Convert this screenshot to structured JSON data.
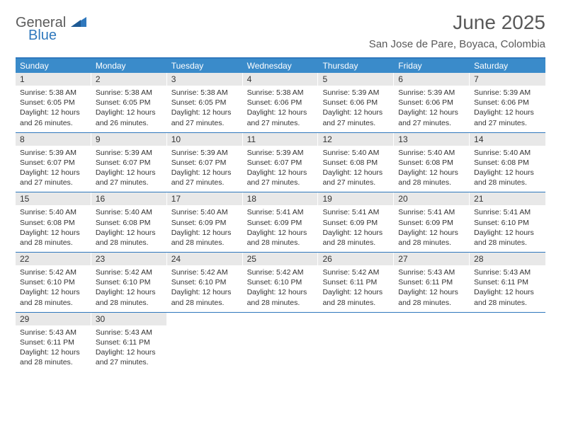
{
  "logo": {
    "line1": "General",
    "line2": "Blue",
    "brand_gray": "#5b5b5b",
    "brand_blue": "#2f78bd"
  },
  "header": {
    "title": "June 2025",
    "location": "San Jose de Pare, Boyaca, Colombia"
  },
  "colors": {
    "header_bar": "#3a8bca",
    "rule": "#2f78bd",
    "daynum_bg": "#e8e8e8",
    "text": "#333333",
    "title_text": "#595959"
  },
  "daysOfWeek": [
    "Sunday",
    "Monday",
    "Tuesday",
    "Wednesday",
    "Thursday",
    "Friday",
    "Saturday"
  ],
  "weeks": [
    [
      {
        "n": "1",
        "sr": "5:38 AM",
        "ss": "6:05 PM",
        "dl": "12 hours and 26 minutes."
      },
      {
        "n": "2",
        "sr": "5:38 AM",
        "ss": "6:05 PM",
        "dl": "12 hours and 26 minutes."
      },
      {
        "n": "3",
        "sr": "5:38 AM",
        "ss": "6:05 PM",
        "dl": "12 hours and 27 minutes."
      },
      {
        "n": "4",
        "sr": "5:38 AM",
        "ss": "6:06 PM",
        "dl": "12 hours and 27 minutes."
      },
      {
        "n": "5",
        "sr": "5:39 AM",
        "ss": "6:06 PM",
        "dl": "12 hours and 27 minutes."
      },
      {
        "n": "6",
        "sr": "5:39 AM",
        "ss": "6:06 PM",
        "dl": "12 hours and 27 minutes."
      },
      {
        "n": "7",
        "sr": "5:39 AM",
        "ss": "6:06 PM",
        "dl": "12 hours and 27 minutes."
      }
    ],
    [
      {
        "n": "8",
        "sr": "5:39 AM",
        "ss": "6:07 PM",
        "dl": "12 hours and 27 minutes."
      },
      {
        "n": "9",
        "sr": "5:39 AM",
        "ss": "6:07 PM",
        "dl": "12 hours and 27 minutes."
      },
      {
        "n": "10",
        "sr": "5:39 AM",
        "ss": "6:07 PM",
        "dl": "12 hours and 27 minutes."
      },
      {
        "n": "11",
        "sr": "5:39 AM",
        "ss": "6:07 PM",
        "dl": "12 hours and 27 minutes."
      },
      {
        "n": "12",
        "sr": "5:40 AM",
        "ss": "6:08 PM",
        "dl": "12 hours and 27 minutes."
      },
      {
        "n": "13",
        "sr": "5:40 AM",
        "ss": "6:08 PM",
        "dl": "12 hours and 28 minutes."
      },
      {
        "n": "14",
        "sr": "5:40 AM",
        "ss": "6:08 PM",
        "dl": "12 hours and 28 minutes."
      }
    ],
    [
      {
        "n": "15",
        "sr": "5:40 AM",
        "ss": "6:08 PM",
        "dl": "12 hours and 28 minutes."
      },
      {
        "n": "16",
        "sr": "5:40 AM",
        "ss": "6:08 PM",
        "dl": "12 hours and 28 minutes."
      },
      {
        "n": "17",
        "sr": "5:40 AM",
        "ss": "6:09 PM",
        "dl": "12 hours and 28 minutes."
      },
      {
        "n": "18",
        "sr": "5:41 AM",
        "ss": "6:09 PM",
        "dl": "12 hours and 28 minutes."
      },
      {
        "n": "19",
        "sr": "5:41 AM",
        "ss": "6:09 PM",
        "dl": "12 hours and 28 minutes."
      },
      {
        "n": "20",
        "sr": "5:41 AM",
        "ss": "6:09 PM",
        "dl": "12 hours and 28 minutes."
      },
      {
        "n": "21",
        "sr": "5:41 AM",
        "ss": "6:10 PM",
        "dl": "12 hours and 28 minutes."
      }
    ],
    [
      {
        "n": "22",
        "sr": "5:42 AM",
        "ss": "6:10 PM",
        "dl": "12 hours and 28 minutes."
      },
      {
        "n": "23",
        "sr": "5:42 AM",
        "ss": "6:10 PM",
        "dl": "12 hours and 28 minutes."
      },
      {
        "n": "24",
        "sr": "5:42 AM",
        "ss": "6:10 PM",
        "dl": "12 hours and 28 minutes."
      },
      {
        "n": "25",
        "sr": "5:42 AM",
        "ss": "6:10 PM",
        "dl": "12 hours and 28 minutes."
      },
      {
        "n": "26",
        "sr": "5:42 AM",
        "ss": "6:11 PM",
        "dl": "12 hours and 28 minutes."
      },
      {
        "n": "27",
        "sr": "5:43 AM",
        "ss": "6:11 PM",
        "dl": "12 hours and 28 minutes."
      },
      {
        "n": "28",
        "sr": "5:43 AM",
        "ss": "6:11 PM",
        "dl": "12 hours and 28 minutes."
      }
    ],
    [
      {
        "n": "29",
        "sr": "5:43 AM",
        "ss": "6:11 PM",
        "dl": "12 hours and 28 minutes."
      },
      {
        "n": "30",
        "sr": "5:43 AM",
        "ss": "6:11 PM",
        "dl": "12 hours and 27 minutes."
      },
      null,
      null,
      null,
      null,
      null
    ]
  ],
  "labels": {
    "sunrise": "Sunrise: ",
    "sunset": "Sunset: ",
    "daylight": "Daylight: "
  }
}
